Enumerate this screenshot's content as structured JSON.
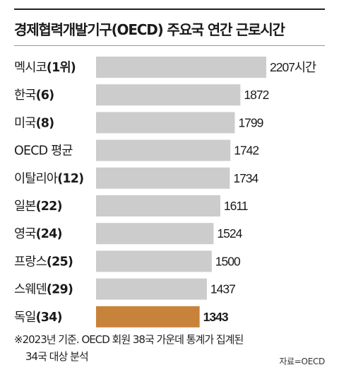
{
  "title": "경제협력개발기구(OECD) 주요국 연간 근로시간",
  "chart_data": {
    "type": "bar",
    "orientation": "horizontal",
    "title": "경제협력개발기구(OECD) 주요국 연간 근로시간",
    "categories": [
      {
        "name": "멕시코",
        "rank": "(1위)"
      },
      {
        "name": "한국",
        "rank": "(6)"
      },
      {
        "name": "미국",
        "rank": "(8)"
      },
      {
        "name": "OECD 평균",
        "rank": ""
      },
      {
        "name": "이탈리아",
        "rank": "(12)"
      },
      {
        "name": "일본",
        "rank": "(22)"
      },
      {
        "name": "영국",
        "rank": "(24)"
      },
      {
        "name": "프랑스",
        "rank": "(25)"
      },
      {
        "name": "스웨덴",
        "rank": "(29)"
      },
      {
        "name": "독일",
        "rank": "(34)"
      }
    ],
    "values": [
      2207,
      1872,
      1799,
      1742,
      1734,
      1611,
      1524,
      1500,
      1437,
      1343
    ],
    "value_labels": [
      "2207시간",
      "1872",
      "1799",
      "1742",
      "1734",
      "1611",
      "1524",
      "1500",
      "1437",
      "1343"
    ],
    "highlight": "독일",
    "colors": {
      "bar": "#cccccc",
      "highlight": "#c8833a"
    },
    "xlabel": "",
    "ylabel": "",
    "grid": false
  },
  "footnote": {
    "line1": "※2023년 기준. OECD 회원 38국 가운데 통계가 집계된",
    "line2": "34국 대상 분석"
  },
  "source": "자료=OECD"
}
